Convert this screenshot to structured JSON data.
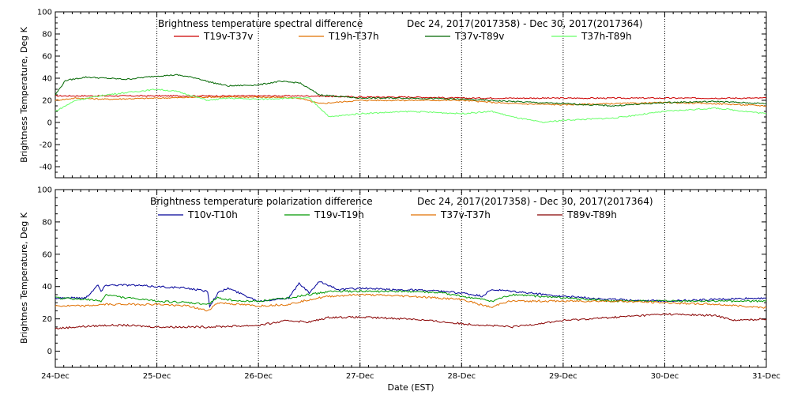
{
  "x_axis": {
    "label": "Date (EST)",
    "ticks": [
      "24-Dec",
      "25-Dec",
      "26-Dec",
      "27-Dec",
      "28-Dec",
      "29-Dec",
      "30-Dec",
      "31-Dec"
    ]
  },
  "chart_data": [
    {
      "type": "line",
      "title": "Brightness temperature spectral difference",
      "date_range": "Dec 24, 2017(2017358) - Dec 30, 2017(2017364)",
      "ylabel": "Brightness Temperature, Deg K",
      "ylim": [
        -50,
        100
      ],
      "yticks": [
        -40,
        -20,
        0,
        20,
        40,
        60,
        80,
        100
      ],
      "xlim": [
        0,
        7
      ],
      "grid": "vertical dotted at each day",
      "legend_placement": "top",
      "series": [
        {
          "name": "T19v-T37v",
          "color": "#cc0000",
          "x": [
            0,
            0.5,
            1,
            1.5,
            2,
            2.5,
            3,
            3.5,
            4,
            4.5,
            5,
            5.5,
            6,
            6.5,
            7
          ],
          "values": [
            24,
            24,
            24,
            24,
            24,
            24,
            23,
            23,
            22,
            22,
            22,
            22,
            22,
            22,
            22
          ]
        },
        {
          "name": "T19h-T37h",
          "color": "#e07000",
          "x": [
            0,
            0.2,
            0.5,
            1,
            1.5,
            2,
            2.4,
            2.6,
            3,
            3.5,
            4,
            4.5,
            5,
            5.5,
            6,
            6.5,
            7
          ],
          "values": [
            20,
            22,
            21,
            22,
            23,
            23,
            22,
            17,
            20,
            20,
            20,
            17,
            16,
            17,
            18,
            17,
            15
          ]
        },
        {
          "name": "T37v-T89v",
          "color": "#006600",
          "x": [
            0,
            0.1,
            0.3,
            0.5,
            0.7,
            1,
            1.2,
            1.4,
            1.5,
            1.7,
            2,
            2.2,
            2.4,
            2.6,
            3,
            3.5,
            4,
            4.5,
            5,
            5.5,
            6,
            6.5,
            7
          ],
          "values": [
            25,
            38,
            41,
            40,
            39,
            42,
            43,
            40,
            37,
            33,
            34,
            37,
            36,
            25,
            22,
            22,
            21,
            19,
            17,
            15,
            18,
            19,
            17
          ]
        },
        {
          "name": "T37h-T89h",
          "color": "#66ff66",
          "x": [
            0,
            0.2,
            0.5,
            0.8,
            1,
            1.2,
            1.5,
            1.7,
            2,
            2.3,
            2.5,
            2.7,
            3,
            3.5,
            4,
            4.3,
            4.5,
            4.8,
            5,
            5.5,
            6,
            6.5,
            7
          ],
          "values": [
            10,
            20,
            25,
            28,
            30,
            28,
            20,
            22,
            21,
            22,
            22,
            5,
            8,
            10,
            8,
            10,
            5,
            0,
            2,
            4,
            10,
            13,
            8
          ]
        }
      ]
    },
    {
      "type": "line",
      "title": "Brightness temperature polarization difference",
      "date_range": "Dec 24, 2017(2017358) - Dec 30, 2017(2017364)",
      "ylabel": "Brightnes Temperature, Deg K",
      "ylim": [
        -10,
        100
      ],
      "yticks": [
        0,
        20,
        40,
        60,
        80,
        100
      ],
      "xlim": [
        0,
        7
      ],
      "grid": "vertical dotted at each day",
      "legend_placement": "top",
      "series": [
        {
          "name": "T10v-T10h",
          "color": "#000099",
          "x": [
            0,
            0.3,
            0.42,
            0.45,
            0.5,
            0.7,
            1,
            1.3,
            1.5,
            1.52,
            1.6,
            1.7,
            2,
            2.3,
            2.4,
            2.5,
            2.6,
            2.8,
            3,
            3.3,
            3.5,
            3.8,
            4,
            4.2,
            4.3,
            4.5,
            5,
            5.5,
            6,
            6.5,
            7
          ],
          "values": [
            33,
            33,
            41,
            37,
            41,
            41,
            40,
            39,
            37,
            28,
            36,
            39,
            31,
            33,
            42,
            36,
            43,
            38,
            39,
            38,
            38,
            37,
            36,
            34,
            38,
            37,
            34,
            32,
            31,
            32,
            33
          ]
        },
        {
          "name": "T19v-T19h",
          "color": "#009900",
          "x": [
            0,
            0.3,
            0.45,
            0.5,
            0.7,
            1,
            1.3,
            1.5,
            1.6,
            1.8,
            2,
            2.3,
            2.5,
            2.7,
            3,
            3.5,
            3.8,
            4,
            4.3,
            4.5,
            5,
            5.5,
            6,
            6.5,
            7
          ],
          "values": [
            33,
            32,
            31,
            35,
            33,
            31,
            30,
            29,
            33,
            31,
            31,
            33,
            35,
            37,
            37,
            37,
            36,
            34,
            31,
            35,
            33,
            31,
            31,
            31,
            31
          ]
        },
        {
          "name": "T37v-T37h",
          "color": "#e07000",
          "x": [
            0,
            0.3,
            0.5,
            1,
            1.3,
            1.5,
            1.6,
            1.8,
            2,
            2.3,
            2.5,
            2.7,
            3,
            3.5,
            4,
            4.3,
            4.4,
            4.5,
            5,
            5.5,
            6,
            6.5,
            7
          ],
          "values": [
            28,
            28,
            29,
            29,
            28,
            25,
            30,
            29,
            28,
            29,
            32,
            34,
            35,
            34,
            32,
            27,
            30,
            31,
            31,
            31,
            30,
            29,
            27
          ]
        },
        {
          "name": "T89v-T89h",
          "color": "#880000",
          "x": [
            0,
            0.2,
            0.5,
            0.7,
            1,
            1.5,
            2,
            2.3,
            2.5,
            2.7,
            3,
            3.5,
            4,
            4.5,
            5,
            5.5,
            6,
            6.5,
            6.7,
            7
          ],
          "values": [
            14,
            15,
            16,
            16,
            15,
            15,
            16,
            19,
            18,
            21,
            21,
            20,
            17,
            15,
            19,
            21,
            23,
            22,
            19,
            20
          ]
        }
      ]
    }
  ]
}
